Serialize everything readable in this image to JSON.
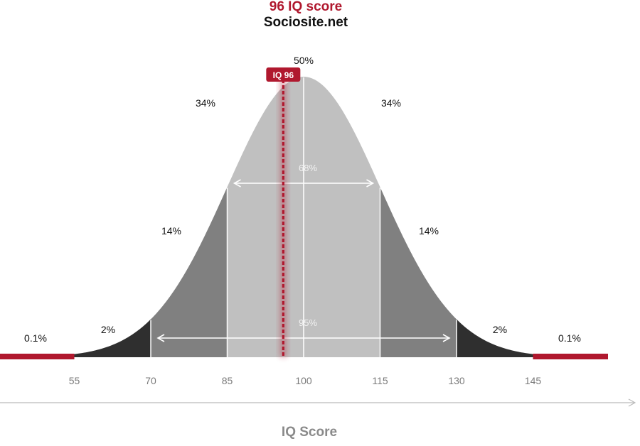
{
  "header": {
    "title": "96 IQ score",
    "subtitle": "Sociosite.net"
  },
  "chart_data": {
    "type": "area",
    "title": "96 IQ score",
    "subtitle": "Sociosite.net",
    "xlabel": "IQ Score",
    "ylabel": "",
    "xlim": [
      40,
      160
    ],
    "x_ticks": [
      55,
      70,
      85,
      100,
      115,
      130,
      145
    ],
    "distribution": {
      "mean": 100,
      "sd": 15
    },
    "regions": [
      {
        "from": 40,
        "to": 55,
        "label": "0.1%",
        "color": "#b0182e"
      },
      {
        "from": 55,
        "to": 70,
        "label": "2%",
        "color": "#2f2f2f"
      },
      {
        "from": 70,
        "to": 85,
        "label": "14%",
        "color": "#808080"
      },
      {
        "from": 85,
        "to": 100,
        "label": "34%",
        "color": "#c0c0c0"
      },
      {
        "from": 100,
        "to": 115,
        "label": "34%",
        "color": "#c0c0c0"
      },
      {
        "from": 115,
        "to": 130,
        "label": "14%",
        "color": "#808080"
      },
      {
        "from": 130,
        "to": 145,
        "label": "2%",
        "color": "#2f2f2f"
      },
      {
        "from": 145,
        "to": 160,
        "label": "0.1%",
        "color": "#b0182e"
      }
    ],
    "annotations": {
      "mean_label": "50%",
      "span_68": {
        "from": 85,
        "to": 115,
        "label": "68%"
      },
      "span_95": {
        "from": 70,
        "to": 130,
        "label": "95%"
      }
    },
    "marker": {
      "value": 96,
      "label": "IQ 96",
      "color": "#b0182e"
    }
  }
}
